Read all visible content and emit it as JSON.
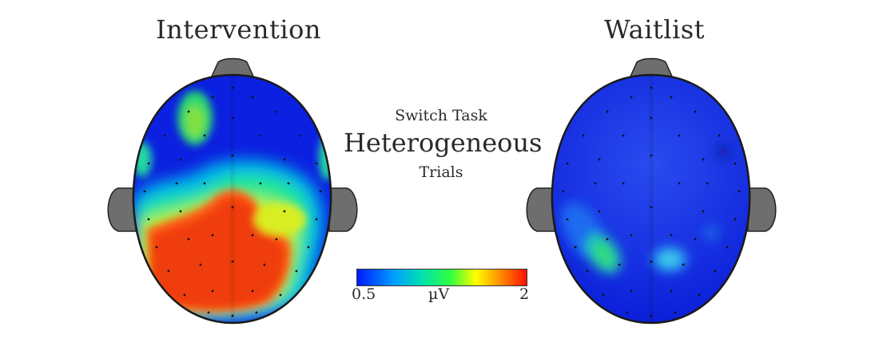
{
  "panels": [
    {
      "title": "Intervention"
    },
    {
      "title": "Waitlist"
    }
  ],
  "condition": {
    "line1": "Switch Task",
    "line2": "Heterogeneous",
    "line3": "Trials"
  },
  "colorbar": {
    "min_label": "0.5",
    "unit_label": "µV",
    "max_label": "2",
    "colormap": "jet"
  },
  "colors": {
    "low": "#0b20e0",
    "mid": "#30ff40",
    "high": "#ff3010",
    "ears_nose": "#6e6e6e"
  }
}
